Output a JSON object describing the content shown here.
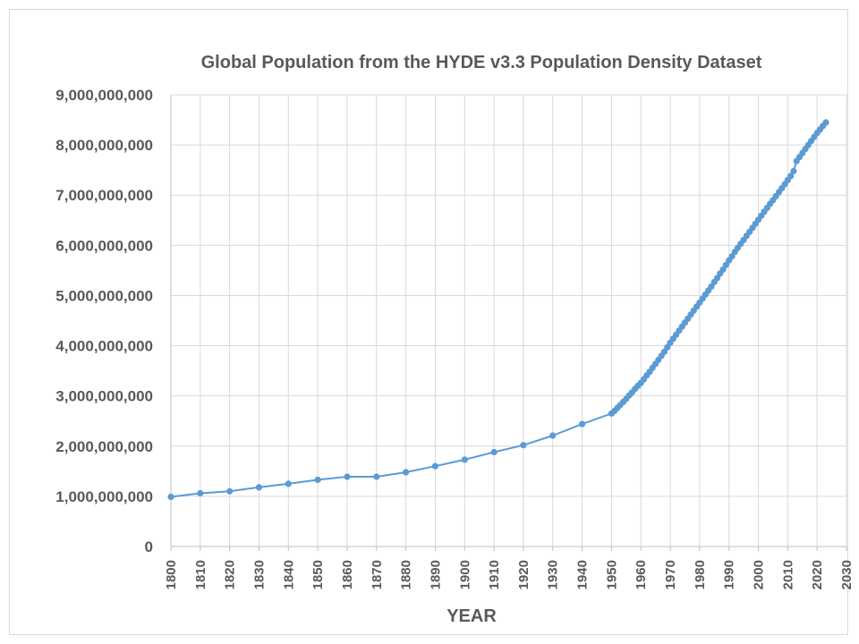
{
  "chart_data": {
    "type": "line",
    "title": "Global Population from the HYDE v3.3 Population Density Dataset",
    "xlabel": "YEAR",
    "ylabel": "",
    "xlim": [
      1800,
      2030
    ],
    "ylim": [
      0,
      9000000000
    ],
    "x_ticks": [
      "1800",
      "1810",
      "1820",
      "1830",
      "1840",
      "1850",
      "1860",
      "1870",
      "1880",
      "1890",
      "1900",
      "1910",
      "1920",
      "1930",
      "1940",
      "1950",
      "1960",
      "1970",
      "1980",
      "1990",
      "2000",
      "2010",
      "2020",
      "2030"
    ],
    "y_ticks": [
      "0",
      "1,000,000,000",
      "2,000,000,000",
      "3,000,000,000",
      "4,000,000,000",
      "5,000,000,000",
      "6,000,000,000",
      "7,000,000,000",
      "8,000,000,000",
      "9,000,000,000"
    ],
    "grid": true,
    "legend": "none",
    "colors": {
      "series": "#5b9bd5",
      "grid": "#d9d9d9",
      "text": "#595959"
    },
    "series": [
      {
        "x": [
          1800,
          1810,
          1820,
          1830,
          1840,
          1850,
          1860,
          1870,
          1880,
          1890,
          1900,
          1910,
          1920,
          1930,
          1940,
          1950,
          1951,
          1952,
          1953,
          1954,
          1955,
          1956,
          1957,
          1958,
          1959,
          1960,
          1961,
          1962,
          1963,
          1964,
          1965,
          1966,
          1967,
          1968,
          1969,
          1970,
          1971,
          1972,
          1973,
          1974,
          1975,
          1976,
          1977,
          1978,
          1979,
          1980,
          1981,
          1982,
          1983,
          1984,
          1985,
          1986,
          1987,
          1988,
          1989,
          1990,
          1991,
          1992,
          1993,
          1994,
          1995,
          1996,
          1997,
          1998,
          1999,
          2000,
          2001,
          2002,
          2003,
          2004,
          2005,
          2006,
          2007,
          2008,
          2009,
          2010,
          2011,
          2012,
          2013,
          2014,
          2015,
          2016,
          2017,
          2018,
          2019,
          2020,
          2021,
          2022,
          2023
        ],
        "y": [
          990000000,
          1060000000,
          1100000000,
          1180000000,
          1250000000,
          1330000000,
          1390000000,
          1390000000,
          1480000000,
          1600000000,
          1730000000,
          1880000000,
          2020000000,
          2210000000,
          2440000000,
          2650000000,
          2700000000,
          2760000000,
          2820000000,
          2880000000,
          2940000000,
          3010000000,
          3070000000,
          3140000000,
          3200000000,
          3260000000,
          3330000000,
          3410000000,
          3480000000,
          3560000000,
          3640000000,
          3720000000,
          3800000000,
          3880000000,
          3970000000,
          4060000000,
          4140000000,
          4220000000,
          4300000000,
          4380000000,
          4460000000,
          4540000000,
          4620000000,
          4700000000,
          4780000000,
          4860000000,
          4940000000,
          5020000000,
          5100000000,
          5180000000,
          5270000000,
          5350000000,
          5440000000,
          5520000000,
          5610000000,
          5700000000,
          5780000000,
          5870000000,
          5950000000,
          6030000000,
          6110000000,
          6190000000,
          6270000000,
          6350000000,
          6430000000,
          6510000000,
          6590000000,
          6670000000,
          6750000000,
          6830000000,
          6900000000,
          6980000000,
          7060000000,
          7140000000,
          7220000000,
          7300000000,
          7380000000,
          7480000000,
          7680000000,
          7760000000,
          7840000000,
          7920000000,
          8000000000,
          8080000000,
          8160000000,
          8240000000,
          8310000000,
          8380000000,
          8450000000
        ]
      }
    ]
  }
}
